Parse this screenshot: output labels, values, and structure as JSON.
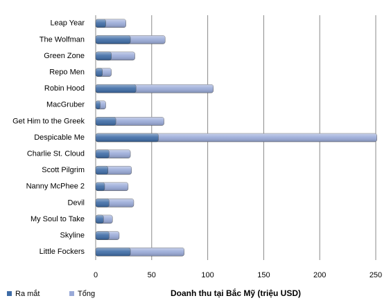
{
  "chart_data": {
    "type": "bar",
    "orientation": "horizontal",
    "x_label": "Doanh thu tại Bắc Mỹ (triệu USD)",
    "categories": [
      "Leap Year",
      "The Wolfman",
      "Green Zone",
      "Repo Men",
      "Robin Hood",
      "MacGruber",
      "Get Him to the Greek",
      "Despicable Me",
      "Charlie St. Cloud",
      "Scott Pilgrim",
      "Nanny McPhee 2",
      "Devil",
      "My Soul to Take",
      "Skyline",
      "Little Fockers"
    ],
    "series": [
      {
        "name": "Ra mắt",
        "color": "#3d6ba6",
        "values": [
          9,
          31,
          14,
          6,
          36,
          4,
          18,
          56,
          12,
          11,
          8,
          12,
          7,
          12,
          31
        ]
      },
      {
        "name": "Tổng",
        "color": "#99aad8",
        "values": [
          27,
          62,
          35,
          14,
          105,
          9,
          61,
          251,
          31,
          32,
          29,
          34,
          15,
          21,
          79
        ]
      }
    ],
    "xlim": [
      0,
      250
    ],
    "xticks": [
      0,
      50,
      100,
      150,
      200,
      250
    ],
    "grid": true,
    "legend": "bottom-left"
  }
}
